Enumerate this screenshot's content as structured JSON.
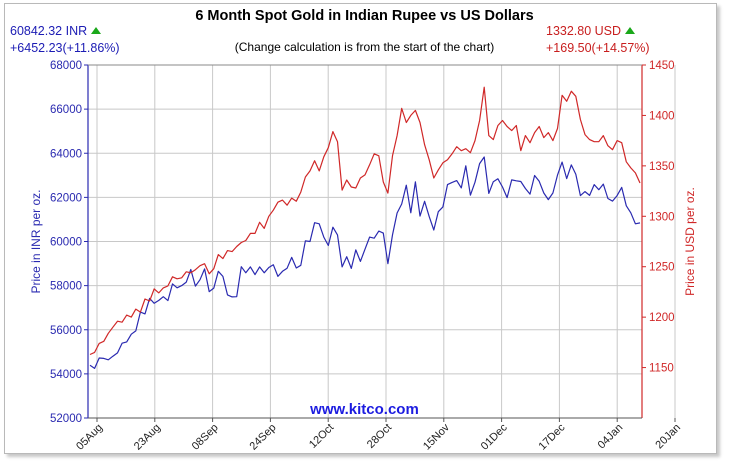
{
  "header": {
    "title": "6 Month Spot Gold in Indian Rupee vs US Dollars",
    "subtitle": "(Change calculation is from the start of the chart)",
    "inr_price": "60842.32 INR",
    "inr_change": "+6452.23(+11.86%)",
    "usd_price": "1332.80 USD",
    "usd_change": "+169.50(+14.57%)",
    "watermark": "www.kitco.com"
  },
  "colors": {
    "inr": "#2a2ab0",
    "usd": "#d02828",
    "up_arrow": "#1aa81a",
    "grid": "#c8c8c8"
  },
  "chart_data": {
    "type": "line",
    "title": "6 Month Spot Gold in Indian Rupee vs US Dollars",
    "ylabel_left": "Price in INR per oz.",
    "ylabel_right": "Price in USD per oz.",
    "ylim_left": [
      52000,
      68000
    ],
    "ylim_right": [
      1100,
      1450
    ],
    "yticks_left": [
      "52000",
      "54000",
      "56000",
      "58000",
      "60000",
      "62000",
      "64000",
      "66000",
      "68000"
    ],
    "yticks_right": [
      "1150",
      "1200",
      "1250",
      "1300",
      "1350",
      "1400",
      "1450"
    ],
    "xticks": [
      "05Aug",
      "23Aug",
      "08Sep",
      "24Sep",
      "12Oct",
      "28Oct",
      "15Nov",
      "01Dec",
      "17Dec",
      "04Jan",
      "20Jan"
    ],
    "grid": true,
    "series": [
      {
        "name": "INR",
        "axis": "left",
        "values": [
          54390,
          54250,
          54720,
          54700,
          54640,
          54800,
          54950,
          55390,
          55450,
          55800,
          55950,
          56800,
          56720,
          57420,
          57200,
          57330,
          57500,
          57320,
          58080,
          57900,
          58000,
          58160,
          58730,
          57980,
          58270,
          58760,
          57730,
          57890,
          58650,
          58420,
          57580,
          57490,
          57500,
          58860,
          58580,
          58850,
          58500,
          58850,
          58580,
          58820,
          58950,
          58420,
          58650,
          58790,
          59280,
          58800,
          58920,
          60030,
          60000,
          60850,
          60800,
          60200,
          59820,
          60650,
          60300,
          58850,
          59310,
          58780,
          59620,
          59100,
          59650,
          60200,
          60150,
          60470,
          60380,
          59000,
          60300,
          61290,
          61700,
          62550,
          61300,
          62700,
          61150,
          61820,
          61130,
          60520,
          61350,
          61570,
          62580,
          62680,
          62760,
          62430,
          63430,
          62100,
          62690,
          63530,
          63830,
          62180,
          62710,
          62840,
          62470,
          61990,
          62790,
          62750,
          62720,
          62400,
          62150,
          62990,
          62730,
          62200,
          61900,
          62200,
          63010,
          63600,
          62850,
          63470,
          63050,
          62080,
          62260,
          62090,
          62580,
          62350,
          62600,
          61950,
          61830,
          62080,
          62450,
          61620,
          61300,
          60800,
          60842
        ]
      },
      {
        "name": "USD",
        "axis": "right",
        "values": [
          1163,
          1165,
          1174,
          1176,
          1184,
          1190,
          1196,
          1195,
          1202,
          1200,
          1208,
          1205,
          1218,
          1216,
          1228,
          1224,
          1229,
          1231,
          1240,
          1238,
          1239,
          1245,
          1244,
          1247,
          1251,
          1253,
          1243,
          1248,
          1262,
          1258,
          1266,
          1265,
          1270,
          1274,
          1276,
          1283,
          1283,
          1294,
          1288,
          1300,
          1306,
          1314,
          1316,
          1311,
          1318,
          1315,
          1324,
          1339,
          1345,
          1355,
          1345,
          1359,
          1368,
          1384,
          1374,
          1326,
          1336,
          1329,
          1328,
          1338,
          1341,
          1351,
          1362,
          1360,
          1334,
          1323,
          1360,
          1380,
          1407,
          1393,
          1400,
          1405,
          1393,
          1371,
          1356,
          1338,
          1346,
          1353,
          1356,
          1362,
          1369,
          1365,
          1367,
          1363,
          1375,
          1395,
          1428,
          1380,
          1376,
          1390,
          1395,
          1389,
          1385,
          1390,
          1365,
          1380,
          1373,
          1383,
          1389,
          1378,
          1383,
          1375,
          1387,
          1420,
          1414,
          1424,
          1419,
          1396,
          1381,
          1376,
          1374,
          1374,
          1380,
          1370,
          1366,
          1375,
          1373,
          1354,
          1348,
          1343,
          1333
        ]
      }
    ]
  }
}
